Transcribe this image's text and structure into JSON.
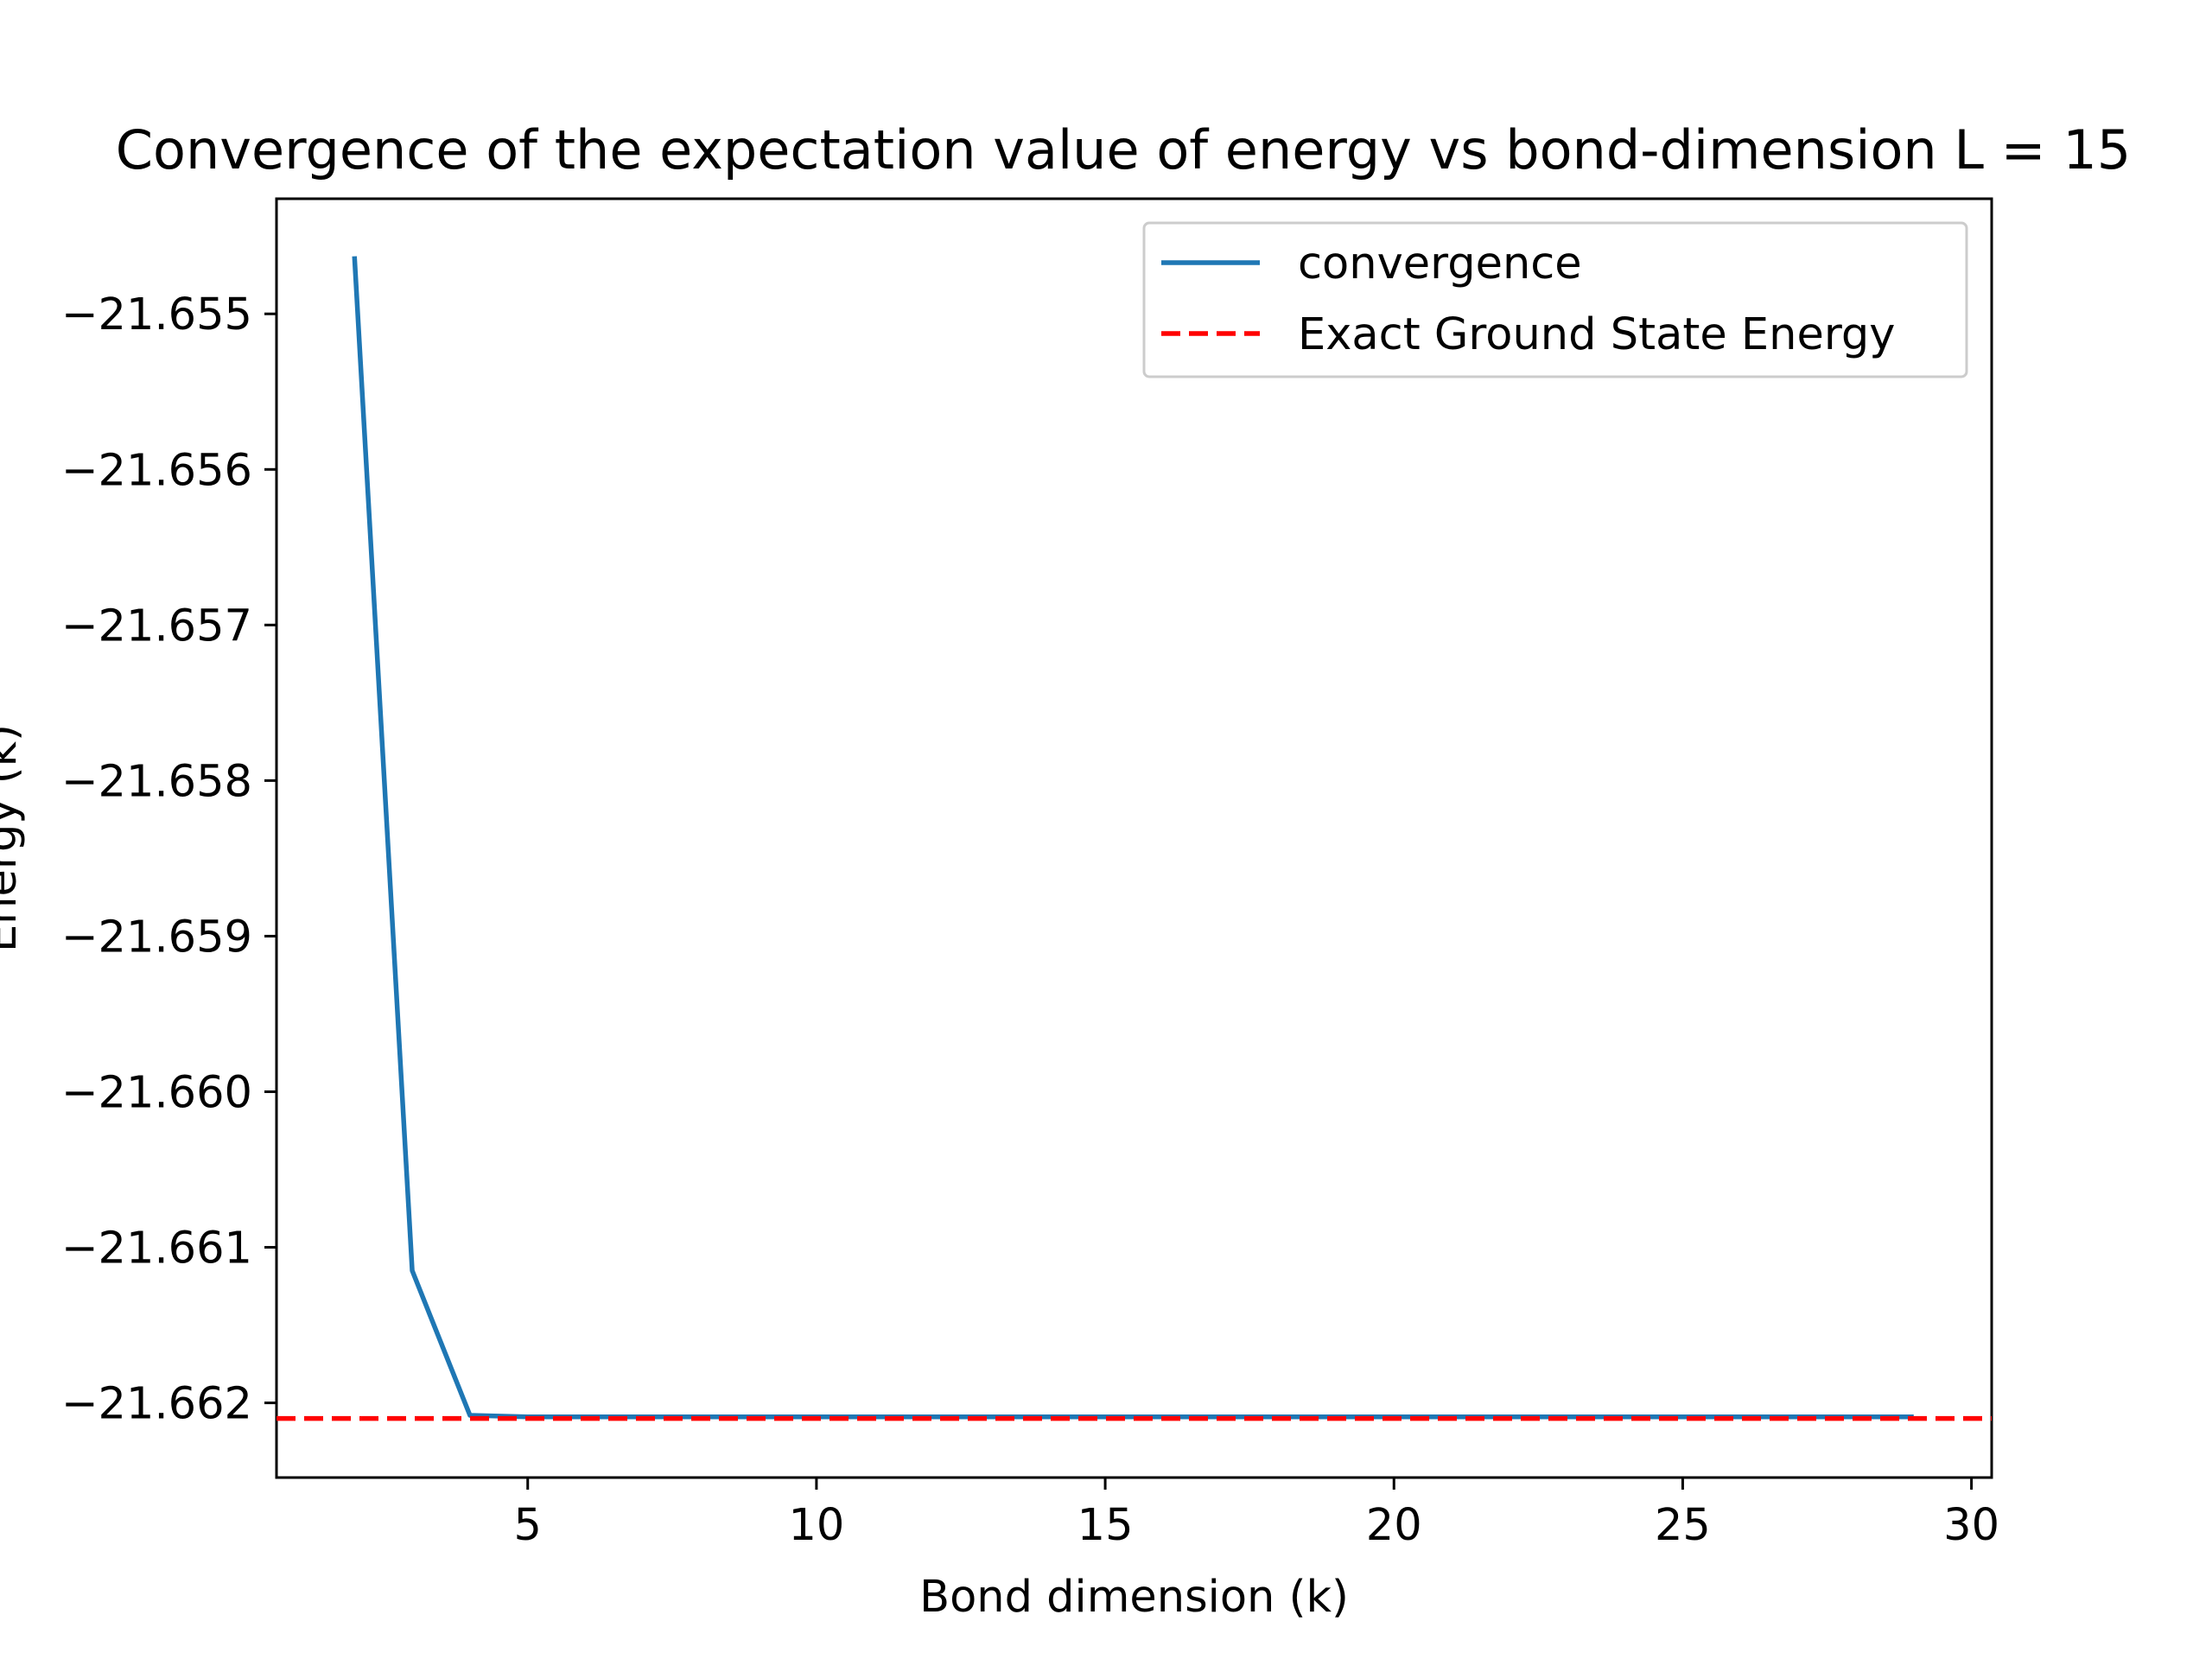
{
  "chart_data": {
    "type": "line",
    "title": "Convergence of the expectation value of energy vs bond-dimension L = 15",
    "xlabel": "Bond dimension (k)",
    "ylabel": "Energy (k)",
    "xlim": [
      0.65,
      30.35
    ],
    "ylim": [
      -21.66248,
      -21.65426
    ],
    "xticks": [
      5,
      10,
      15,
      20,
      25,
      30
    ],
    "xtick_labels": [
      "5",
      "10",
      "15",
      "20",
      "25",
      "30"
    ],
    "yticks": [
      -21.655,
      -21.656,
      -21.657,
      -21.658,
      -21.659,
      -21.66,
      -21.661,
      -21.662
    ],
    "ytick_labels": [
      "−21.655",
      "−21.656",
      "−21.657",
      "−21.658",
      "−21.659",
      "−21.660",
      "−21.661",
      "−21.662"
    ],
    "grid": false,
    "legend_position": "top-right",
    "series": [
      {
        "name": "convergence",
        "color": "#1f77b4",
        "style": "solid",
        "x": [
          2,
          3,
          4,
          5,
          6,
          7,
          8,
          9,
          10,
          11,
          12,
          13,
          14,
          15,
          16,
          17,
          18,
          19,
          20,
          21,
          22,
          23,
          24,
          25,
          26,
          27,
          28,
          29
        ],
        "y": [
          -21.65463,
          -21.66115,
          -21.66208,
          -21.66209,
          -21.66209,
          -21.66209,
          -21.66209,
          -21.66209,
          -21.66209,
          -21.66209,
          -21.66209,
          -21.66209,
          -21.66209,
          -21.66209,
          -21.66209,
          -21.66209,
          -21.66209,
          -21.66209,
          -21.66209,
          -21.66209,
          -21.66209,
          -21.66209,
          -21.66209,
          -21.66209,
          -21.66209,
          -21.66209,
          -21.66209,
          -21.66209
        ]
      },
      {
        "name": "Exact Ground State Energy",
        "color": "#ff0000",
        "style": "dashed",
        "horizontal_line": -21.6621
      }
    ]
  }
}
